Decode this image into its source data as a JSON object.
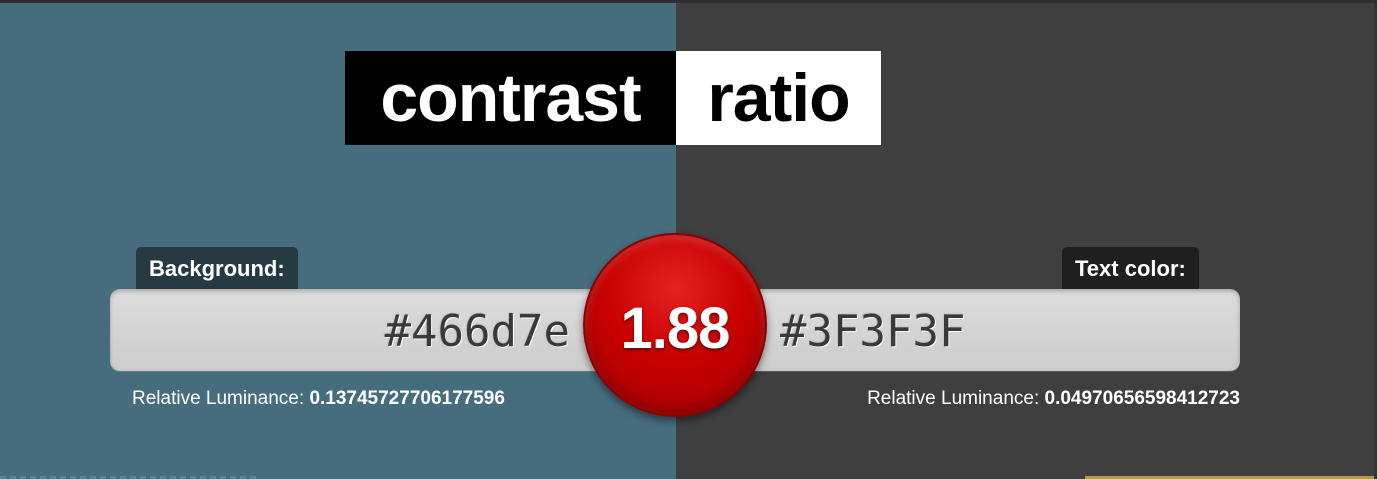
{
  "colors": {
    "background": "#466d7e",
    "text": "#3F3F3F",
    "badge": "#c80000"
  },
  "title": {
    "left": "contrast",
    "right": "ratio"
  },
  "background": {
    "label": "Background:",
    "value": "#466d7e",
    "luminance_label": "Relative Luminance:",
    "luminance_value": "0.13745727706177596"
  },
  "foreground": {
    "label": "Text color:",
    "value": "#3F3F3F",
    "luminance_label": "Relative Luminance:",
    "luminance_value": "0.04970656598412723"
  },
  "ratio": {
    "value": "1.88"
  }
}
